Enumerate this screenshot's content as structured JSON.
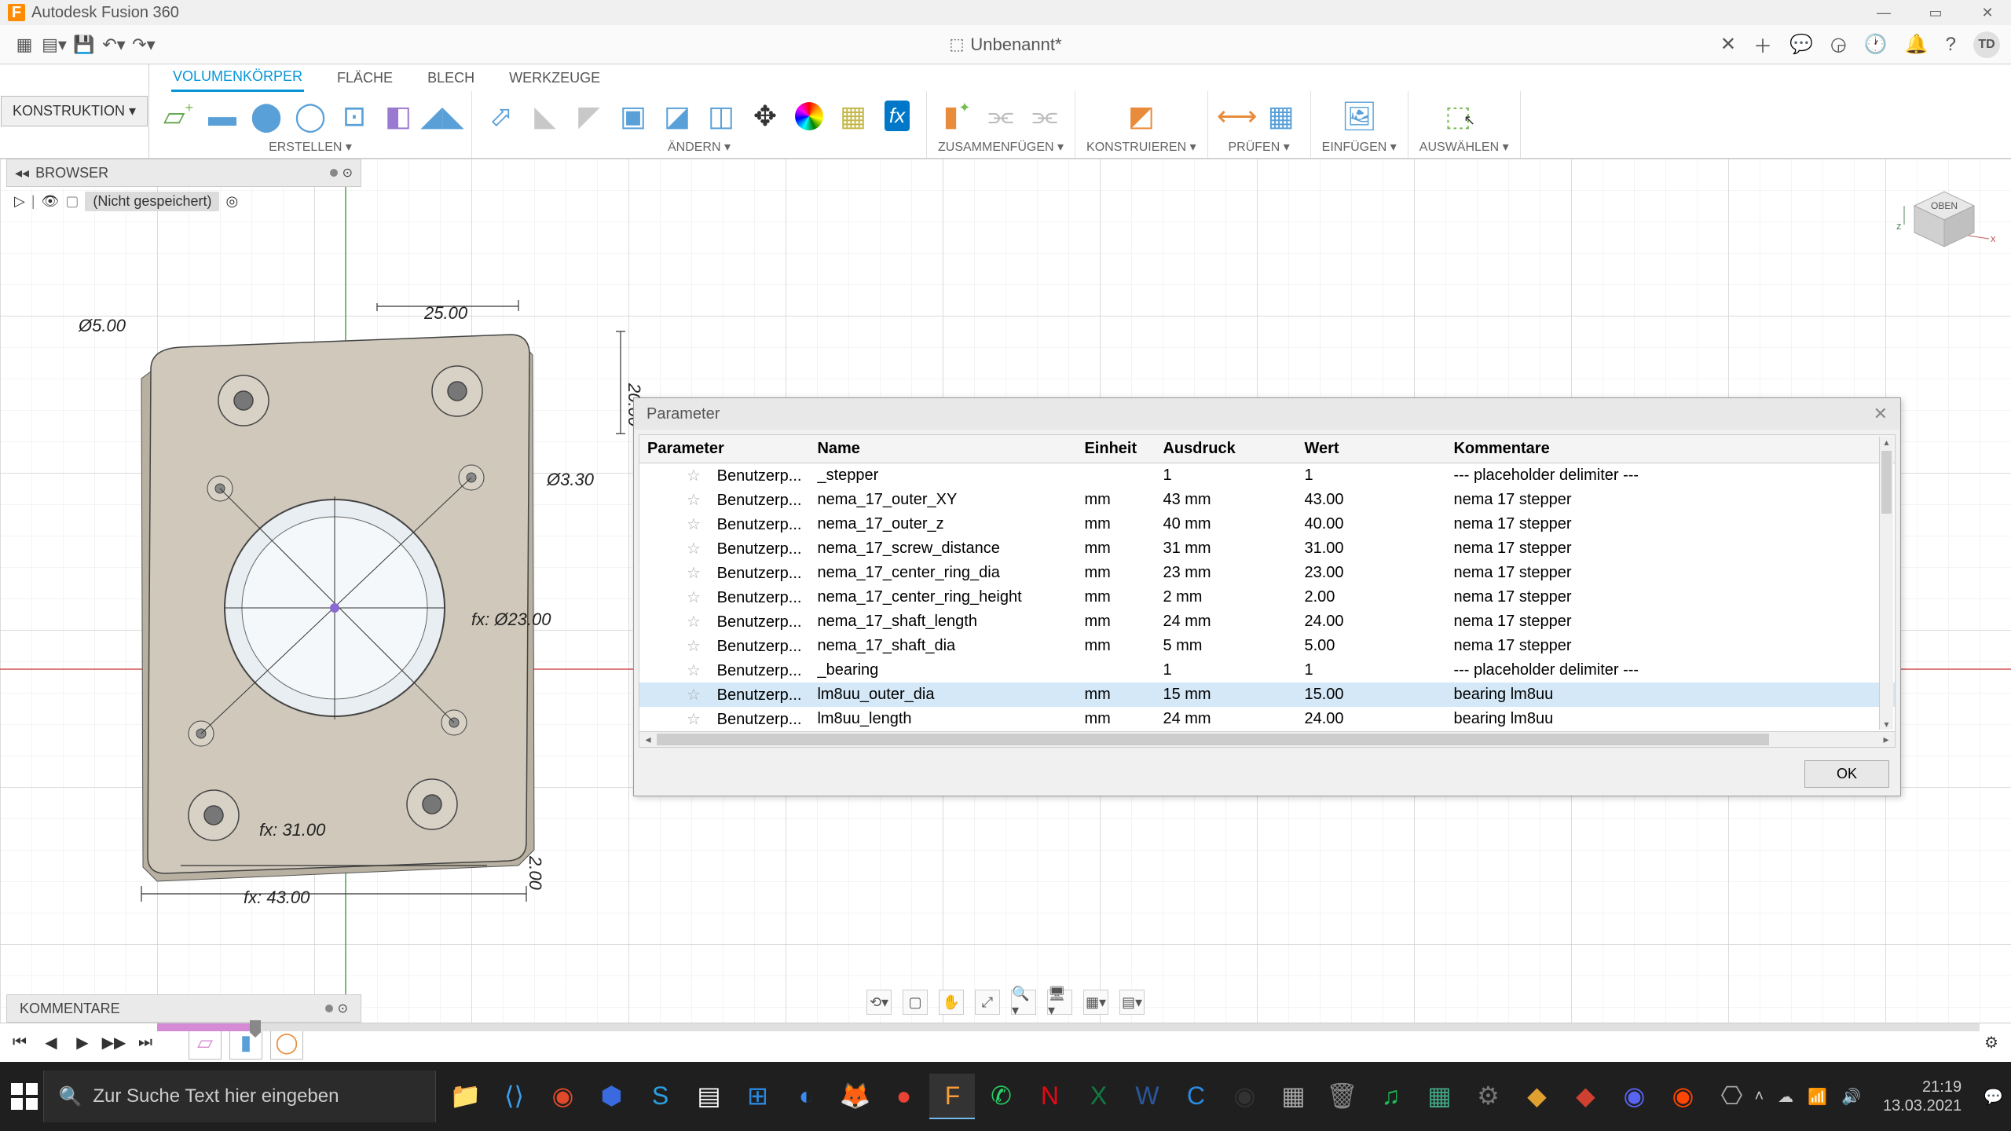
{
  "app_title": "Autodesk Fusion 360",
  "document_title": "Unbenannt*",
  "construction_label": "KONSTRUKTION ▾",
  "ribbon_tabs": [
    "VOLUMENKÖRPER",
    "FLÄCHE",
    "BLECH",
    "WERKZEUGE"
  ],
  "ribbon_groups": {
    "create": "ERSTELLEN ▾",
    "modify": "ÄNDERN ▾",
    "assemble": "ZUSAMMENFÜGEN ▾",
    "construct": "KONSTRUIEREN ▾",
    "inspect": "PRÜFEN ▾",
    "insert": "EINFÜGEN ▾",
    "select": "AUSWÄHLEN ▾"
  },
  "browser": {
    "title": "BROWSER",
    "saved_label": "(Nicht gespeichert)"
  },
  "comments": {
    "title": "KOMMENTARE"
  },
  "viewcube": {
    "face": "OBEN"
  },
  "search_placeholder": "Zur Suche Text hier eingeben",
  "clock": {
    "time": "21:19",
    "date": "13.03.2021"
  },
  "user_badge": "TD",
  "dimensions": {
    "d1": "Ø5.00",
    "d2": "25.00",
    "d3": "20.00",
    "d4": "Ø3.30",
    "d5": "fx: Ø23.00",
    "d6": "fx: 31.00",
    "d7": "fx: 43.00",
    "d8": "2.00"
  },
  "parameter_dialog": {
    "title": "Parameter",
    "ok": "OK",
    "columns": [
      "Parameter",
      "Name",
      "Einheit",
      "Ausdruck",
      "Wert",
      "Kommentare"
    ],
    "highlighted_row": 9,
    "rows": [
      [
        "Benutzerp...",
        "_stepper",
        "",
        "1",
        "1",
        "--- placeholder delimiter ---"
      ],
      [
        "Benutzerp...",
        "nema_17_outer_XY",
        "mm",
        "43 mm",
        "43.00",
        "nema 17 stepper"
      ],
      [
        "Benutzerp...",
        "nema_17_outer_z",
        "mm",
        "40 mm",
        "40.00",
        "nema 17 stepper"
      ],
      [
        "Benutzerp...",
        "nema_17_screw_distance",
        "mm",
        "31 mm",
        "31.00",
        "nema 17 stepper"
      ],
      [
        "Benutzerp...",
        "nema_17_center_ring_dia",
        "mm",
        "23 mm",
        "23.00",
        "nema 17 stepper"
      ],
      [
        "Benutzerp...",
        "nema_17_center_ring_height",
        "mm",
        "2 mm",
        "2.00",
        "nema 17 stepper"
      ],
      [
        "Benutzerp...",
        "nema_17_shaft_length",
        "mm",
        "24 mm",
        "24.00",
        "nema 17 stepper"
      ],
      [
        "Benutzerp...",
        "nema_17_shaft_dia",
        "mm",
        "5 mm",
        "5.00",
        "nema 17 stepper"
      ],
      [
        "Benutzerp...",
        "_bearing",
        "",
        "1",
        "1",
        "--- placeholder delimiter ---"
      ],
      [
        "Benutzerp...",
        "lm8uu_outer_dia",
        "mm",
        "15 mm",
        "15.00",
        "bearing lm8uu"
      ],
      [
        "Benutzerp...",
        "lm8uu_length",
        "mm",
        "24 mm",
        "24.00",
        "bearing lm8uu"
      ]
    ]
  },
  "icon_colors": {
    "blue": "#5aa0d8",
    "orange": "#e88b3a",
    "green_yellow": "#c4b84a",
    "teal": "#4a9",
    "fx_bg": "#0077c8",
    "rainbow": "conic"
  },
  "taskbar_apps": [
    {
      "c": "#f8cb4a",
      "g": "📁"
    },
    {
      "c": "#3aa0f0",
      "g": "⟨⟩"
    },
    {
      "c": "#e04a2a",
      "g": "◉"
    },
    {
      "c": "#3a6ae0",
      "g": "⬢"
    },
    {
      "c": "#2aa0e0",
      "g": "S"
    },
    {
      "c": "#fff",
      "g": "▤"
    },
    {
      "c": "#2a8ae0",
      "g": "⊞"
    },
    {
      "c": "#3a8af0",
      "g": "◐"
    },
    {
      "c": "#e07a2a",
      "g": "🦊"
    },
    {
      "c": "#ea4335",
      "g": "●"
    },
    {
      "c": "#f89b3a",
      "g": "F",
      "active": true
    },
    {
      "c": "#25d366",
      "g": "✆"
    },
    {
      "c": "#e50914",
      "g": "N"
    },
    {
      "c": "#107c41",
      "g": "X"
    },
    {
      "c": "#2b579a",
      "g": "W"
    },
    {
      "c": "#2a8ae0",
      "g": "C"
    },
    {
      "c": "#333",
      "g": "◉"
    },
    {
      "c": "#aaa",
      "g": "▦"
    },
    {
      "c": "#888",
      "g": "🗑"
    },
    {
      "c": "#1db954",
      "g": "♫"
    },
    {
      "c": "#4a8",
      "g": "▦"
    },
    {
      "c": "#777",
      "g": "⚙"
    },
    {
      "c": "#e0a030",
      "g": "◆"
    },
    {
      "c": "#d04030",
      "g": "◆"
    },
    {
      "c": "#5865f2",
      "g": "◉"
    },
    {
      "c": "#ff4500",
      "g": "◉"
    },
    {
      "c": "#aaa",
      "g": "⎔"
    }
  ]
}
